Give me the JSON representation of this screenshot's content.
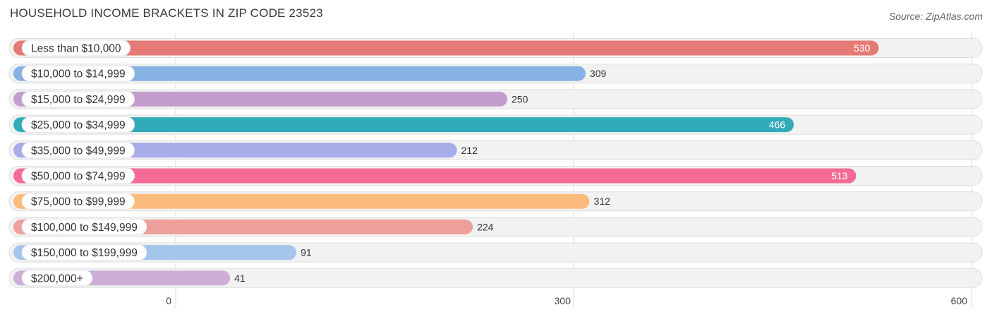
{
  "title": "HOUSEHOLD INCOME BRACKETS IN ZIP CODE 23523",
  "source": "Source: ZipAtlas.com",
  "chart_data": {
    "type": "bar",
    "orientation": "horizontal",
    "title": "HOUSEHOLD INCOME BRACKETS IN ZIP CODE 23523",
    "xlabel": "",
    "ylabel": "",
    "xlim": [
      0,
      600
    ],
    "ticks": [
      0,
      300,
      600
    ],
    "tick_labels": [
      "0",
      "300",
      "600"
    ],
    "grid": true,
    "categories": [
      "Less than $10,000",
      "$10,000 to $14,999",
      "$15,000 to $24,999",
      "$25,000 to $34,999",
      "$35,000 to $49,999",
      "$50,000 to $74,999",
      "$75,000 to $99,999",
      "$100,000 to $149,999",
      "$150,000 to $199,999",
      "$200,000+"
    ],
    "values": [
      530,
      309,
      250,
      466,
      212,
      513,
      312,
      224,
      91,
      41
    ],
    "value_labels": [
      "530",
      "309",
      "250",
      "466",
      "212",
      "513",
      "312",
      "224",
      "91",
      "41"
    ],
    "colors": [
      "#e57a76",
      "#86b1e4",
      "#c39dcb",
      "#31abb9",
      "#a6ade8",
      "#f46c96",
      "#fbbb7c",
      "#eea09d",
      "#a4c5ec",
      "#cdaed8"
    ]
  }
}
